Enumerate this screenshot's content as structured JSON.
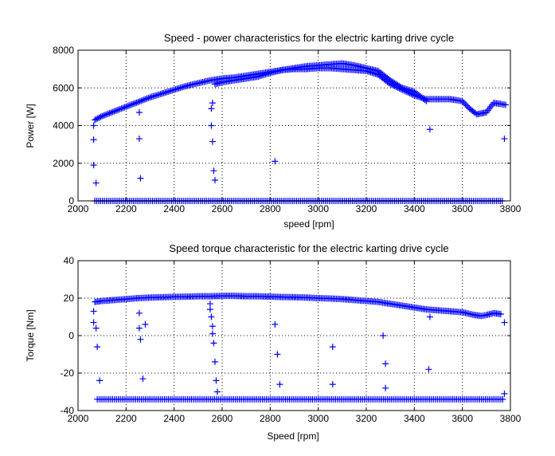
{
  "chart_data": [
    {
      "type": "scatter",
      "title": "Speed - power characteristics for the electric karting drive cycle",
      "xlabel": "speed [rpm]",
      "ylabel": "Power [W]",
      "xlim": [
        2000,
        3800
      ],
      "ylim": [
        0,
        8000
      ],
      "xticks": [
        2000,
        2200,
        2400,
        2600,
        2800,
        3000,
        3200,
        3400,
        3600,
        3800
      ],
      "yticks": [
        0,
        2000,
        4000,
        6000,
        8000
      ],
      "grid": true,
      "marker": "+",
      "color": "#0000ff",
      "series": [
        {
          "main_curve": {
            "x": [
              2070,
              2100,
              2150,
              2200,
              2250,
              2300,
              2350,
              2400,
              2450,
              2500,
              2550,
              2600,
              2650,
              2700,
              2750,
              2800,
              2850,
              2900,
              2950,
              3000,
              3050,
              3100,
              3150,
              3200,
              3250,
              3300,
              3350,
              3400,
              3450,
              3500,
              3550,
              3600,
              3630,
              3660,
              3700,
              3730,
              3760,
              3780
            ],
            "y": [
              4300,
              4500,
              4750,
              5000,
              5250,
              5500,
              5700,
              5900,
              6100,
              6250,
              6400,
              6500,
              6550,
              6650,
              6750,
              6850,
              6950,
              7000,
              7000,
              7050,
              7050,
              7000,
              6950,
              6900,
              6700,
              6200,
              5900,
              5600,
              5400,
              5400,
              5400,
              5300,
              4900,
              4600,
              4700,
              5200,
              5150,
              5100
            ]
          },
          "upper_band": {
            "x": [
              2570,
              2600,
              2650,
              2700,
              2750,
              2800,
              2850,
              2900,
              2950,
              3000,
              3050,
              3100,
              3150,
              3200,
              3250,
              3300,
              3350,
              3400,
              3450
            ],
            "y": [
              6200,
              6300,
              6400,
              6500,
              6600,
              6800,
              6950,
              7050,
              7150,
              7200,
              7250,
              7300,
              7200,
              7050,
              6900,
              6400,
              6000,
              5800,
              5300
            ]
          },
          "outliers": {
            "x": [
              2065,
              2065,
              2065,
              2075,
              2255,
              2255,
              2260,
              2555,
              2555,
              2560,
              2560,
              2565,
              2570,
              2820,
              3465,
              3775
            ],
            "y": [
              4000,
              3250,
              1900,
              950,
              4700,
              3300,
              1200,
              4900,
              4000,
              3150,
              5200,
              1600,
              1100,
              2100,
              3800,
              3300
            ]
          },
          "zero_line": {
            "x_range": [
              2070,
              3770
            ],
            "y": 0
          }
        }
      ]
    },
    {
      "type": "scatter",
      "title": "Speed torque characteristic for the electric karting drive cycle",
      "xlabel": "Speed [rpm]",
      "ylabel": "Torque [Nm]",
      "xlim": [
        2000,
        3800
      ],
      "ylim": [
        -40,
        40
      ],
      "xticks": [
        2000,
        2200,
        2400,
        2600,
        2800,
        3000,
        3200,
        3400,
        3600,
        3800
      ],
      "yticks": [
        -40,
        -20,
        0,
        20,
        40
      ],
      "grid": true,
      "marker": "+",
      "color": "#0000ff",
      "series": [
        {
          "main_curve": {
            "x": [
              2070,
              2100,
              2150,
              2200,
              2250,
              2300,
              2350,
              2400,
              2450,
              2500,
              2550,
              2600,
              2650,
              2700,
              2750,
              2800,
              2850,
              2900,
              2950,
              3000,
              3050,
              3100,
              3150,
              3200,
              3250,
              3300,
              3350,
              3400,
              3450,
              3500,
              3550,
              3600,
              3650,
              3680,
              3700,
              3730,
              3760
            ],
            "y": [
              18,
              18.5,
              19,
              19.5,
              20,
              20.3,
              20.5,
              20.7,
              20.8,
              21,
              21,
              21.2,
              21.2,
              21,
              21,
              20.8,
              20.6,
              20.5,
              20.3,
              20,
              19.8,
              19.5,
              19,
              18.5,
              18,
              17,
              16,
              15,
              14,
              13.5,
              13,
              12.5,
              11,
              10.5,
              11,
              12,
              11.5
            ]
          },
          "outliers": {
            "x": [
              2065,
              2065,
              2075,
              2080,
              2090,
              2255,
              2255,
              2260,
              2270,
              2280,
              2550,
              2550,
              2555,
              2560,
              2560,
              2565,
              2570,
              2575,
              2580,
              2820,
              2830,
              2840,
              3060,
              3060,
              3270,
              3280,
              3280,
              3460,
              3465,
              3775,
              3775
            ],
            "y": [
              13,
              7,
              4,
              -6,
              -24,
              12,
              4,
              -2,
              -23,
              6,
              17,
              14,
              10,
              5,
              1,
              -4,
              -14,
              -24,
              -30,
              6,
              -10,
              -26,
              -6,
              -26,
              0,
              -15,
              -28,
              -18,
              10,
              7,
              -31
            ]
          },
          "lower_line": {
            "x_range": [
              2080,
              3770
            ],
            "y": -34
          }
        }
      ]
    }
  ]
}
